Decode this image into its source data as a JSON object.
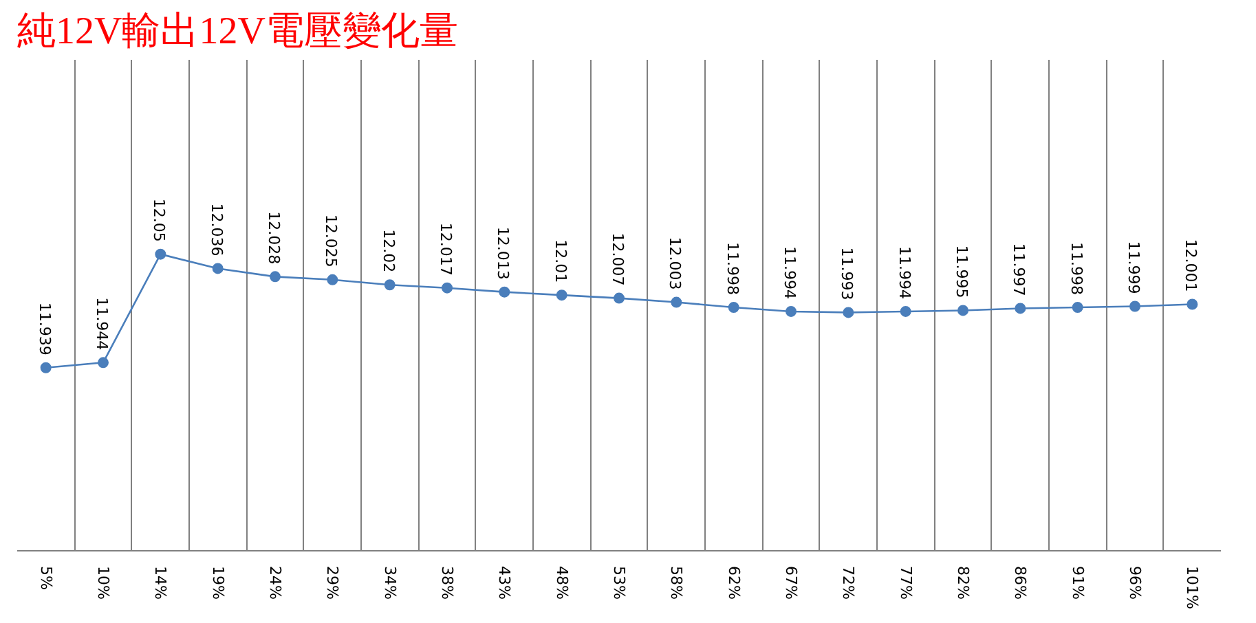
{
  "chart_data": {
    "type": "line",
    "title": "純12V輸出12V電壓變化量",
    "categories": [
      "5%",
      "10%",
      "14%",
      "19%",
      "24%",
      "29%",
      "34%",
      "38%",
      "43%",
      "48%",
      "53%",
      "58%",
      "62%",
      "67%",
      "72%",
      "77%",
      "82%",
      "86%",
      "91%",
      "96%",
      "101%"
    ],
    "series": [
      {
        "color": "#4a7ebb",
        "values": [
          11.939,
          11.944,
          12.05,
          12.036,
          12.028,
          12.025,
          12.02,
          12.017,
          12.013,
          12.01,
          12.007,
          12.003,
          11.998,
          11.994,
          11.993,
          11.994,
          11.995,
          11.997,
          11.998,
          11.999,
          12.001
        ]
      }
    ],
    "ylim": [
      11.76,
      12.24
    ],
    "tick_labels": "x",
    "grid": "x",
    "marker": "circle",
    "line_style": "solid",
    "data_labels": true
  }
}
